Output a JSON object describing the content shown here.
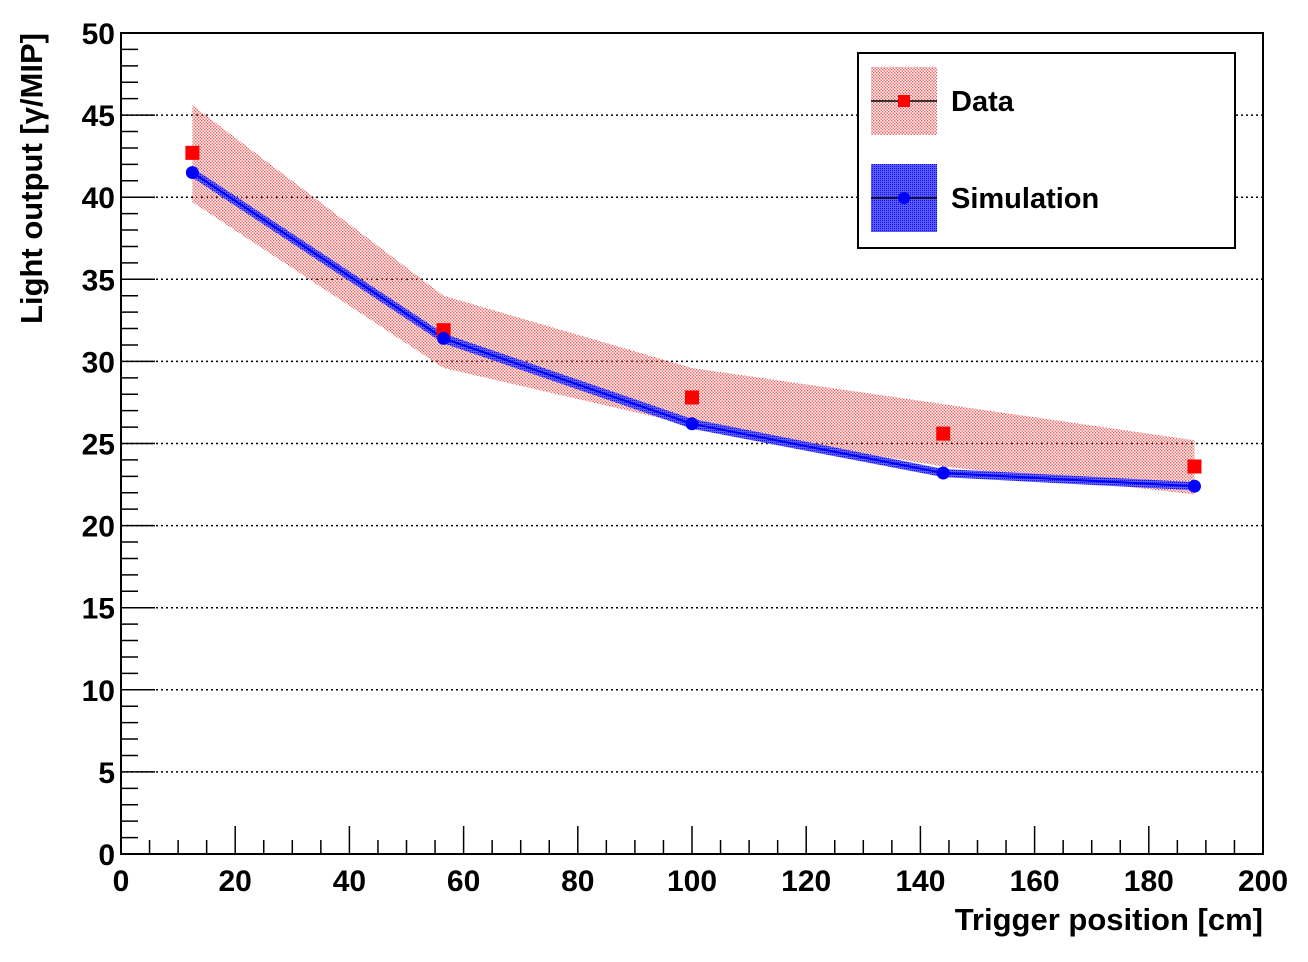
{
  "chart_data": {
    "type": "line",
    "title": "",
    "xlabel": "Trigger position [cm]",
    "ylabel": "Light output [γ/MIP]",
    "xlim": [
      0,
      200
    ],
    "ylim": [
      0,
      50
    ],
    "xticks": [
      "0",
      "20",
      "40",
      "60",
      "80",
      "100",
      "120",
      "140",
      "160",
      "180",
      "200"
    ],
    "yticks": [
      "0",
      "5",
      "10",
      "15",
      "20",
      "25",
      "30",
      "35",
      "40",
      "45",
      "50"
    ],
    "grid": "horizontal dotted",
    "legend_position": "top-right",
    "series": [
      {
        "name": "Data",
        "color": "#ff0000",
        "band_color": "#f08080",
        "marker": "square",
        "x": [
          12.5,
          56.5,
          100,
          144,
          188
        ],
        "values": [
          42.7,
          31.9,
          27.8,
          25.6,
          23.6
        ],
        "band_low": [
          39.7,
          29.6,
          26.1,
          23.6,
          21.9
        ],
        "band_high": [
          45.6,
          34.0,
          29.6,
          27.4,
          25.2
        ]
      },
      {
        "name": "Simulation",
        "color": "#0000ff",
        "band_color": "#3b3bf0",
        "marker": "circle",
        "x": [
          12.5,
          56.5,
          100,
          144,
          188
        ],
        "values": [
          41.5,
          31.4,
          26.2,
          23.2,
          22.4
        ],
        "band_low": [
          41.2,
          31.1,
          25.9,
          22.95,
          22.15
        ],
        "band_high": [
          41.8,
          31.7,
          26.5,
          23.45,
          22.65
        ]
      }
    ]
  }
}
